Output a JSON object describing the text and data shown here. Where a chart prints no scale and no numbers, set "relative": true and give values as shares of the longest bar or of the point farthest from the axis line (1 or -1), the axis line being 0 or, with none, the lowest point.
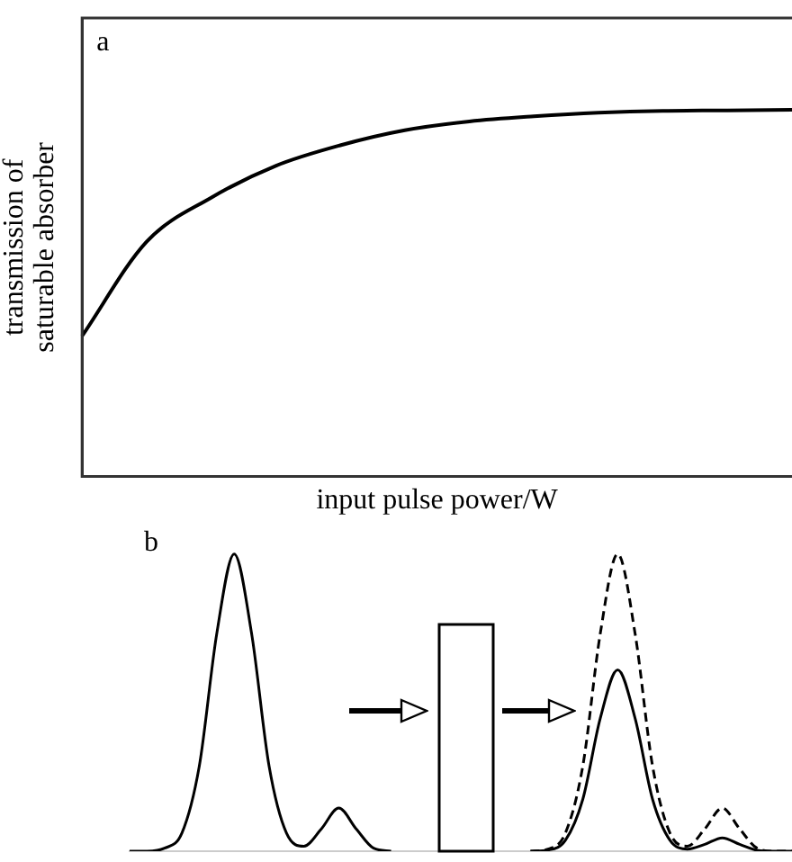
{
  "chart_data": [
    {
      "type": "line",
      "annotations": [
        "a"
      ],
      "xlabel": "input pulse power/W",
      "ylabel": "transmission of saturable absorber",
      "relative": true,
      "categories": [
        null,
        null,
        null,
        null,
        null,
        null,
        null,
        null,
        null,
        null,
        null,
        null
      ],
      "marker": "none",
      "grid": false,
      "legend": false,
      "tick_labels": false,
      "line_style": "solid",
      "series": [
        {
          "color": "#000000",
          "values": [
            0.383,
            0.64,
            0.76,
            0.847,
            0.903,
            0.944,
            0.968,
            0.982,
            0.992,
            0.997,
            0.998,
            1
          ]
        }
      ]
    },
    {
      "type": "line",
      "annotations": [
        "b"
      ],
      "relative": true,
      "categories": [
        null,
        null,
        null,
        null,
        null,
        null,
        null,
        null,
        null,
        null,
        null,
        null,
        null,
        null,
        null,
        null,
        null,
        null,
        null,
        null,
        null,
        null,
        null,
        null,
        null,
        null,
        null,
        null,
        null,
        null,
        null,
        null,
        null,
        null,
        null,
        null,
        null,
        null,
        null
      ],
      "marker": "none",
      "grid": false,
      "legend": false,
      "tick_labels": false,
      "series": [
        {
          "color": "#000000",
          "line_style": "solid",
          "values": [
            0,
            0,
            0.01,
            0.061,
            0.287,
            0.732,
            1,
            0.732,
            0.287,
            0.061,
            0.017,
            0.075,
            0.145,
            0.075,
            0.01,
            0,
            null,
            null,
            null,
            null,
            null,
            null,
            null,
            null,
            null,
            null,
            null,
            null,
            null,
            null,
            null,
            null,
            null,
            null,
            null,
            null,
            null,
            null,
            null
          ]
        },
        {
          "color": "#000000",
          "line_style": "solid",
          "values": [
            null,
            null,
            null,
            null,
            null,
            null,
            null,
            null,
            null,
            null,
            null,
            null,
            null,
            null,
            null,
            null,
            null,
            null,
            null,
            null,
            null,
            null,
            null,
            0,
            0.004,
            0.037,
            0.175,
            0.447,
            0.61,
            0.447,
            0.175,
            0.037,
            0.007,
            0.023,
            0.045,
            0.023,
            0.003,
            0,
            0
          ]
        },
        {
          "color": "#000000",
          "line_style": "dashed",
          "values": [
            null,
            null,
            null,
            null,
            null,
            null,
            null,
            null,
            null,
            null,
            null,
            null,
            null,
            null,
            null,
            null,
            null,
            null,
            null,
            null,
            null,
            null,
            null,
            0,
            0.007,
            0.061,
            0.287,
            0.732,
            1,
            0.732,
            0.287,
            0.061,
            0.017,
            0.075,
            0.145,
            0.075,
            0.01,
            0,
            0
          ]
        }
      ]
    }
  ]
}
